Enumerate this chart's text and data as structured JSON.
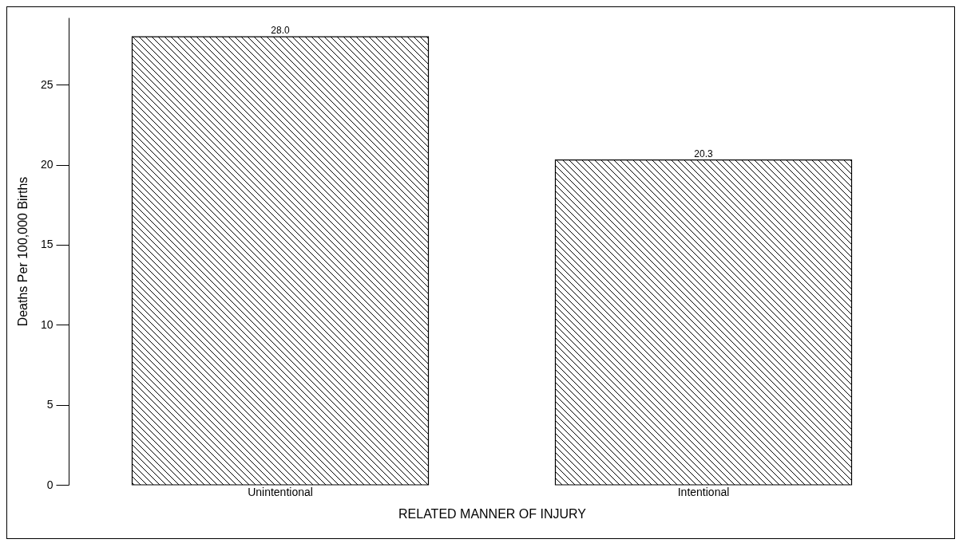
{
  "chart_data": {
    "type": "bar",
    "xlabel": "RELATED MANNER OF INJURY",
    "ylabel": "Deaths Per 100,000 Births",
    "categories": [
      "Unintentional",
      "Intentional"
    ],
    "values": [
      28.0,
      20.3
    ],
    "color": "#000000",
    "ylim": [
      0,
      29.2
    ],
    "yticks": [
      0,
      5,
      10,
      15,
      20,
      25
    ],
    "value_labels": [
      "28.0",
      "20.3"
    ],
    "grid": false
  }
}
